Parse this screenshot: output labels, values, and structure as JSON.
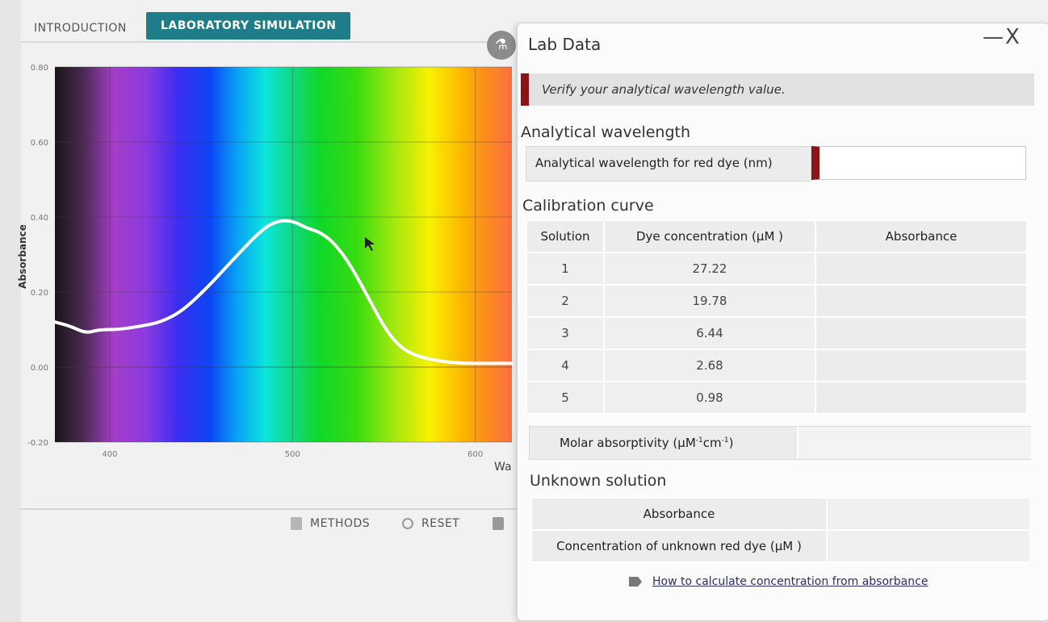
{
  "tabs": {
    "introduction": "INTRODUCTION",
    "laboratory": "LABORATORY SIMULATION"
  },
  "chart_data": {
    "type": "line",
    "ylabel": "Absorbance",
    "xlabel_partial": "Wa",
    "ylim": [
      -0.2,
      0.8
    ],
    "xlim": [
      370,
      620
    ],
    "yticks": [
      "0.80",
      "0.60",
      "0.40",
      "0.20",
      "0.00",
      "-0.20"
    ],
    "ytick_values": [
      0.8,
      0.6,
      0.4,
      0.2,
      0.0,
      -0.2
    ],
    "xticks": [
      "400",
      "500",
      "600"
    ],
    "xtick_values": [
      400,
      500,
      600
    ],
    "background": "visible spectrum gradient",
    "series": [
      {
        "x": [
          370,
          378,
          387,
          394,
          405,
          418,
          428,
          440,
          455,
          470,
          484,
          492,
          500,
          508,
          515,
          523,
          532,
          542,
          552,
          562,
          575,
          590,
          605,
          620
        ],
        "y": [
          0.12,
          0.11,
          0.09,
          0.1,
          0.1,
          0.11,
          0.12,
          0.15,
          0.22,
          0.3,
          0.37,
          0.39,
          0.39,
          0.37,
          0.36,
          0.33,
          0.27,
          0.18,
          0.09,
          0.04,
          0.02,
          0.01,
          0.01,
          0.01
        ],
        "color": "#ffffff"
      }
    ]
  },
  "bottom": {
    "methods": "METHODS",
    "reset": "RESET"
  },
  "panel": {
    "title": "Lab Data",
    "minimize": "—",
    "close": "X",
    "notice": "Verify your analytical wavelength value.",
    "analytical_section": "Analytical wavelength",
    "wavelength_label": "Analytical wavelength for red dye (nm)",
    "wavelength_value": "",
    "calibration_section": "Calibration curve",
    "calib_headers": [
      "Solution",
      "Dye concentration (µM )",
      "Absorbance"
    ],
    "calib_rows": [
      {
        "solution": "1",
        "concentration": "27.22",
        "absorbance": ""
      },
      {
        "solution": "2",
        "concentration": "19.78",
        "absorbance": ""
      },
      {
        "solution": "3",
        "concentration": "6.44",
        "absorbance": ""
      },
      {
        "solution": "4",
        "concentration": "2.68",
        "absorbance": ""
      },
      {
        "solution": "5",
        "concentration": "0.98",
        "absorbance": ""
      }
    ],
    "molar_label": "Molar absorptivity (µM",
    "molar_sup1": "-1",
    "molar_mid": "cm",
    "molar_sup2": "-1",
    "molar_end": ")",
    "molar_value": "",
    "unknown_section": "Unknown solution",
    "unknown_absorbance_label": "Absorbance",
    "unknown_absorbance_value": "",
    "unknown_conc_label": "Concentration of unknown red dye (µM )",
    "unknown_conc_value": "",
    "howto_link": "How to calculate concentration from absorbance"
  },
  "colors": {
    "tab_active": "#1e7d88",
    "accent_red": "#8b1515",
    "curve": "#ffffff"
  }
}
